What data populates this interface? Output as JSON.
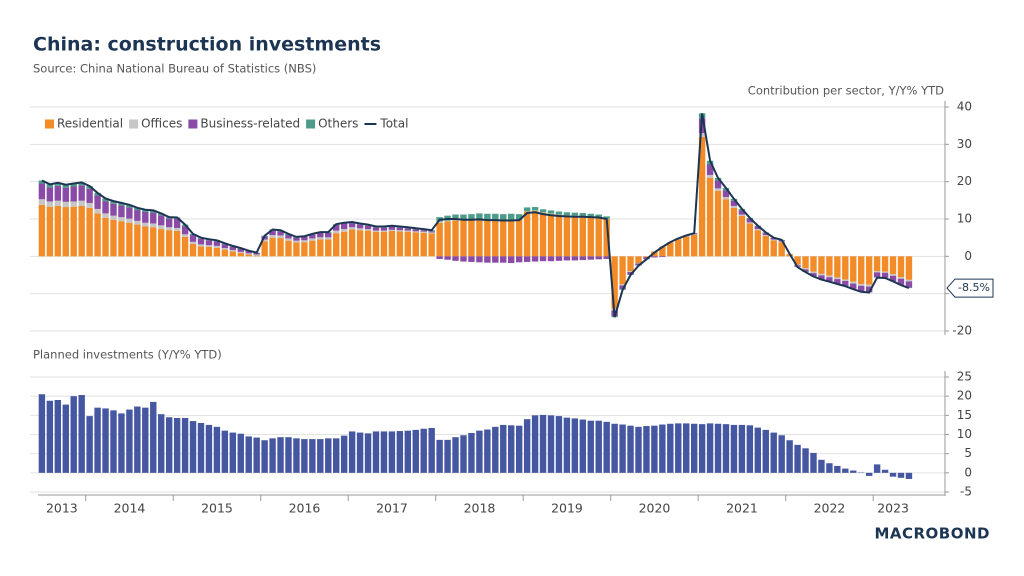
{
  "header": {
    "title": "China: construction investments",
    "source": "Source: China National Bureau of Statistics (NBS)"
  },
  "brand": "MACROBOND",
  "x_labels": [
    "2013",
    "2014",
    "2015",
    "2016",
    "2017",
    "2018",
    "2019",
    "2020",
    "2021",
    "2022",
    "2023"
  ],
  "chart_data": [
    {
      "type": "stacked_bar",
      "axis_label": "Contribution per sector, Y/Y% YTD",
      "legend": "top-left",
      "ylim": [
        -20,
        40
      ],
      "yticks": [
        -20,
        -10,
        0,
        10,
        20,
        30,
        40
      ],
      "grid": true,
      "series": [
        {
          "name": "Residential",
          "color": "#f28c28",
          "values": [
            13.8,
            13.3,
            13.5,
            13.2,
            13.3,
            13.5,
            13.0,
            11.5,
            10.3,
            9.8,
            9.4,
            9.0,
            8.5,
            8.0,
            7.8,
            7.3,
            7.0,
            6.8,
            5.2,
            3.3,
            2.7,
            2.5,
            2.3,
            1.8,
            1.3,
            0.9,
            0.5,
            0.2,
            4.0,
            5.0,
            4.9,
            4.2,
            3.7,
            3.8,
            4.2,
            4.5,
            4.5,
            6.2,
            6.6,
            7.2,
            7.0,
            6.9,
            6.6,
            6.6,
            6.8,
            6.7,
            6.6,
            6.4,
            6.3,
            6.1,
            9.0,
            9.4,
            9.6,
            9.7,
            9.8,
            9.9,
            9.8,
            9.8,
            9.7,
            9.8,
            9.8,
            12.0,
            12.2,
            11.7,
            11.4,
            11.1,
            10.9,
            10.8,
            10.7,
            10.5,
            10.4,
            10.0,
            -14.0,
            -7.5,
            -4.0,
            -1.8,
            -0.2,
            1.3,
            2.6,
            3.7,
            4.6,
            5.3,
            5.8,
            32.0,
            21.0,
            17.5,
            15.3,
            13.0,
            10.8,
            8.8,
            7.0,
            5.5,
            4.3,
            3.8,
            0.6,
            -2.2,
            -3.2,
            -4.1,
            -4.7,
            -5.2,
            -5.7,
            -6.2,
            -6.8,
            -7.4,
            -7.6,
            -4.0,
            -4.1,
            -4.8,
            -5.6,
            -6.3
          ]
        },
        {
          "name": "Offices",
          "color": "#c6c6c6",
          "values": [
            1.5,
            1.4,
            1.4,
            1.4,
            1.4,
            1.4,
            1.3,
            1.2,
            1.2,
            1.1,
            1.1,
            1.1,
            1.0,
            1.0,
            1.0,
            1.0,
            0.8,
            0.8,
            0.7,
            0.6,
            0.5,
            0.5,
            0.5,
            0.4,
            0.4,
            0.3,
            0.3,
            0.3,
            0.5,
            0.7,
            0.7,
            0.6,
            0.5,
            0.5,
            0.6,
            0.6,
            0.6,
            0.7,
            0.7,
            0.6,
            0.5,
            0.4,
            0.3,
            0.3,
            0.3,
            0.3,
            0.3,
            0.3,
            0.3,
            0.3,
            0.3,
            0.2,
            0.2,
            0.1,
            0.1,
            0.1,
            0.1,
            0.1,
            0.1,
            0.0,
            0.0,
            0.1,
            0.1,
            0.1,
            0.1,
            0.1,
            0.1,
            0.1,
            0.1,
            0.1,
            0.1,
            0.1,
            -0.5,
            -0.3,
            -0.2,
            -0.1,
            0.0,
            0.0,
            0.1,
            0.1,
            0.1,
            0.1,
            0.1,
            1.0,
            0.8,
            0.7,
            0.6,
            0.5,
            0.4,
            0.3,
            0.3,
            0.2,
            0.2,
            0.2,
            0.1,
            -0.2,
            -0.3,
            -0.4,
            -0.4,
            -0.4,
            -0.4,
            -0.4,
            -0.5,
            -0.5,
            -0.5,
            -0.3,
            -0.3,
            -0.4,
            -0.4,
            -0.4
          ]
        },
        {
          "name": "Business-related",
          "color": "#8a4ba6",
          "values": [
            4.2,
            3.8,
            4.0,
            3.8,
            4.0,
            4.1,
            3.8,
            3.6,
            3.3,
            3.2,
            3.1,
            3.0,
            2.9,
            2.9,
            2.9,
            2.7,
            2.3,
            2.4,
            2.2,
            1.8,
            1.5,
            1.3,
            1.2,
            1.0,
            0.9,
            0.8,
            0.6,
            0.4,
            0.8,
            1.2,
            1.1,
            0.9,
            0.8,
            0.9,
            1.0,
            1.2,
            1.2,
            1.5,
            1.5,
            1.1,
            1.0,
            0.9,
            0.8,
            0.8,
            0.8,
            0.7,
            0.6,
            0.5,
            0.4,
            0.3,
            -0.7,
            -0.9,
            -1.2,
            -1.4,
            -1.5,
            -1.6,
            -1.7,
            -1.7,
            -1.7,
            -1.8,
            -1.6,
            -1.5,
            -1.4,
            -1.3,
            -1.3,
            -1.2,
            -1.1,
            -1.1,
            -1.0,
            -0.9,
            -0.8,
            -0.7,
            -1.5,
            -1.0,
            -0.7,
            -0.5,
            -0.5,
            -0.3,
            -0.2,
            0.0,
            0.1,
            0.2,
            0.3,
            4.0,
            2.8,
            2.1,
            1.8,
            1.4,
            1.1,
            0.9,
            0.7,
            0.5,
            0.4,
            0.3,
            0.0,
            -0.4,
            -0.6,
            -0.8,
            -1.0,
            -1.1,
            -1.2,
            -1.3,
            -1.4,
            -1.5,
            -1.5,
            -1.3,
            -1.3,
            -1.4,
            -1.6,
            -1.7
          ]
        },
        {
          "name": "Others",
          "color": "#4b9c88",
          "values": [
            0.8,
            0.8,
            0.8,
            0.8,
            0.8,
            0.8,
            0.7,
            0.7,
            0.7,
            0.7,
            0.7,
            0.7,
            0.6,
            0.6,
            0.6,
            0.5,
            0.4,
            0.4,
            0.4,
            0.3,
            0.3,
            0.3,
            0.3,
            0.3,
            0.2,
            0.2,
            0.1,
            0.1,
            0.2,
            0.3,
            0.3,
            0.3,
            0.2,
            0.2,
            0.2,
            0.2,
            0.2,
            0.2,
            0.2,
            0.3,
            0.3,
            0.3,
            0.3,
            0.3,
            0.3,
            0.3,
            0.3,
            0.3,
            0.3,
            0.3,
            1.2,
            1.3,
            1.4,
            1.4,
            1.4,
            1.5,
            1.5,
            1.5,
            1.5,
            1.6,
            1.5,
            1.0,
            0.9,
            0.8,
            0.8,
            0.8,
            0.8,
            0.8,
            0.8,
            0.8,
            0.7,
            0.6,
            -0.3,
            -0.2,
            -0.1,
            -0.1,
            -0.1,
            0.0,
            0.0,
            0.0,
            0.0,
            0.0,
            0.0,
            1.3,
            1.0,
            0.7,
            0.6,
            0.5,
            0.4,
            0.3,
            0.2,
            0.2,
            0.1,
            0.1,
            0.0,
            -0.1,
            -0.1,
            -0.1,
            -0.1,
            -0.1,
            -0.1,
            -0.1,
            -0.1,
            -0.1,
            -0.1,
            -0.1,
            -0.1,
            -0.1,
            -0.1,
            -0.1
          ]
        },
        {
          "name": "Total",
          "type": "line",
          "color": "#1c3553",
          "end_label": "-8.5%",
          "values": [
            20.3,
            19.3,
            19.7,
            19.2,
            19.5,
            19.8,
            18.8,
            17.0,
            15.5,
            14.8,
            14.3,
            13.8,
            13.0,
            12.5,
            12.3,
            11.5,
            10.5,
            10.4,
            8.5,
            6.0,
            5.0,
            4.6,
            4.3,
            3.5,
            2.8,
            2.2,
            1.5,
            1.0,
            5.5,
            7.2,
            7.0,
            6.0,
            5.2,
            5.4,
            6.0,
            6.5,
            6.5,
            8.6,
            9.0,
            9.2,
            8.8,
            8.5,
            8.0,
            8.0,
            8.2,
            8.0,
            7.8,
            7.5,
            7.3,
            7.0,
            9.8,
            10.0,
            10.0,
            9.8,
            9.8,
            9.9,
            9.7,
            9.7,
            9.6,
            9.6,
            9.7,
            11.6,
            11.8,
            11.3,
            11.0,
            10.8,
            10.7,
            10.6,
            10.6,
            10.5,
            10.4,
            10.0,
            -16.3,
            -9.0,
            -5.0,
            -2.5,
            -0.8,
            1.0,
            2.5,
            3.8,
            4.8,
            5.6,
            6.2,
            38.3,
            25.6,
            21.0,
            18.3,
            15.4,
            12.7,
            10.3,
            8.2,
            6.4,
            5.0,
            4.4,
            0.7,
            -2.9,
            -4.2,
            -5.4,
            -6.2,
            -6.8,
            -7.4,
            -8.0,
            -8.8,
            -9.5,
            -9.7,
            -5.7,
            -5.8,
            -6.7,
            -7.7,
            -8.5
          ]
        }
      ]
    },
    {
      "type": "bar",
      "title": "Planned investments (Y/Y% YTD)",
      "color": "#4457a0",
      "ylim": [
        -5,
        25
      ],
      "yticks": [
        -5,
        0,
        5,
        10,
        15,
        20,
        25
      ],
      "grid": true,
      "values": [
        20.5,
        18.8,
        19.0,
        17.8,
        20.0,
        20.3,
        14.8,
        17.0,
        16.8,
        16.3,
        15.5,
        16.5,
        17.3,
        17.0,
        18.5,
        15.3,
        14.5,
        14.3,
        14.3,
        13.5,
        13.0,
        12.5,
        12.0,
        11.0,
        10.5,
        10.2,
        9.5,
        9.2,
        8.5,
        9.0,
        9.3,
        9.3,
        9.0,
        8.8,
        8.8,
        8.8,
        9.0,
        9.0,
        9.7,
        10.8,
        10.5,
        10.3,
        10.8,
        10.8,
        10.8,
        10.9,
        11.0,
        11.2,
        11.5,
        11.7,
        8.6,
        8.6,
        9.3,
        9.8,
        10.4,
        11.0,
        11.3,
        12.0,
        12.5,
        12.4,
        12.3,
        14.0,
        15.0,
        15.1,
        15.0,
        14.8,
        14.4,
        14.2,
        13.9,
        13.6,
        13.6,
        13.3,
        12.8,
        12.6,
        12.3,
        12.0,
        12.2,
        12.3,
        12.6,
        12.8,
        12.9,
        12.9,
        12.8,
        12.7,
        12.9,
        12.8,
        12.7,
        12.5,
        12.5,
        12.4,
        11.8,
        11.2,
        10.5,
        9.8,
        8.5,
        7.3,
        6.4,
        5.2,
        3.4,
        2.5,
        1.8,
        1.1,
        0.6,
        0.1,
        -0.8,
        2.2,
        0.8,
        -1.0,
        -1.3,
        -1.6
      ]
    }
  ]
}
